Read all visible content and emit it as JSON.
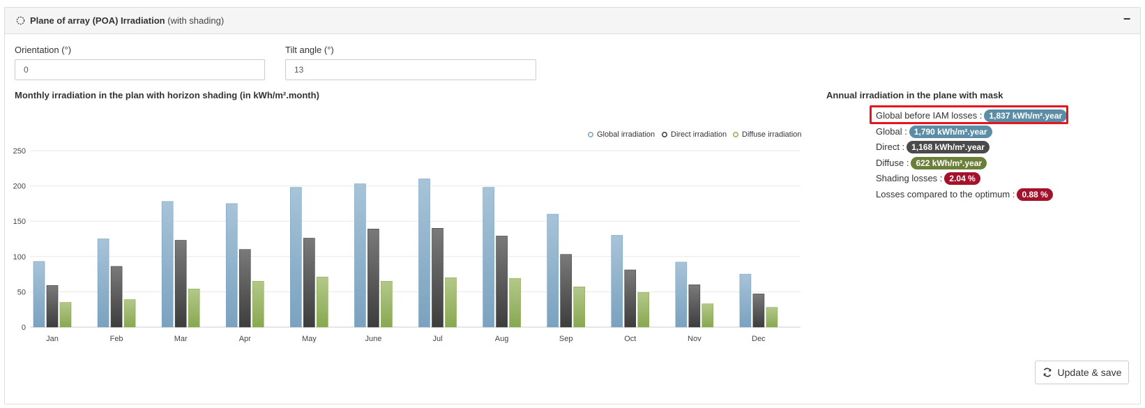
{
  "panel": {
    "title": "Plane of array (POA) Irradiation",
    "subtitle": "(with shading)",
    "collapse_symbol": "−"
  },
  "form": {
    "orientation_label": "Orientation (°)",
    "orientation_value": "0",
    "tilt_label": "Tilt angle (°)",
    "tilt_value": "13"
  },
  "chart_section": {
    "title": "Monthly irradiation in the plan with horizon shading (in kWh/m².month)"
  },
  "annual": {
    "title": "Annual irradiation in the plane with mask",
    "rows": [
      {
        "label": "Global before IAM losses :",
        "value": "1,837 kWh/m².year",
        "color": "#5b8ea6"
      },
      {
        "label": "Global :",
        "value": "1,790 kWh/m².year",
        "color": "#5b8ea6"
      },
      {
        "label": "Direct :",
        "value": "1,168 kWh/m².year",
        "color": "#4a4a4a"
      },
      {
        "label": "Diffuse :",
        "value": "622 kWh/m².year",
        "color": "#6b7f3a"
      },
      {
        "label": "Shading losses :",
        "value": "2.04 %",
        "color": "#a3122a"
      },
      {
        "label": "Losses compared to the optimum :",
        "value": "0.88 %",
        "color": "#a3122a"
      }
    ],
    "highlight_color": "#e8141b"
  },
  "buttons": {
    "update_label": "Update & save",
    "update_icon": "refresh-icon"
  },
  "chart_data": {
    "type": "bar",
    "title": "",
    "xlabel": "",
    "ylabel": "",
    "ylim": [
      0,
      250
    ],
    "yticks": [
      0,
      50,
      100,
      150,
      200,
      250
    ],
    "grid": true,
    "legend_position": "top-right",
    "categories": [
      "Jan",
      "Feb",
      "Mar",
      "Apr",
      "May",
      "June",
      "Jul",
      "Aug",
      "Sep",
      "Oct",
      "Nov",
      "Dec"
    ],
    "series": [
      {
        "name": "Global irradiation",
        "color_top": "#a7c3d8",
        "color_bottom": "#7aa2bf",
        "legend_color": "#7aa2bf",
        "values": [
          93,
          125,
          178,
          175,
          198,
          203,
          210,
          198,
          160,
          130,
          92,
          75
        ]
      },
      {
        "name": "Direct irradiation",
        "color_top": "#7a7a7a",
        "color_bottom": "#3d3d3d",
        "legend_color": "#333333",
        "values": [
          59,
          86,
          123,
          110,
          126,
          139,
          140,
          129,
          103,
          81,
          60,
          47
        ]
      },
      {
        "name": "Diffuse irradiation",
        "color_top": "#b4c88a",
        "color_bottom": "#88a850",
        "legend_color": "#8bb050",
        "values": [
          35,
          39,
          54,
          65,
          71,
          65,
          70,
          69,
          57,
          49,
          33,
          28
        ]
      }
    ]
  }
}
